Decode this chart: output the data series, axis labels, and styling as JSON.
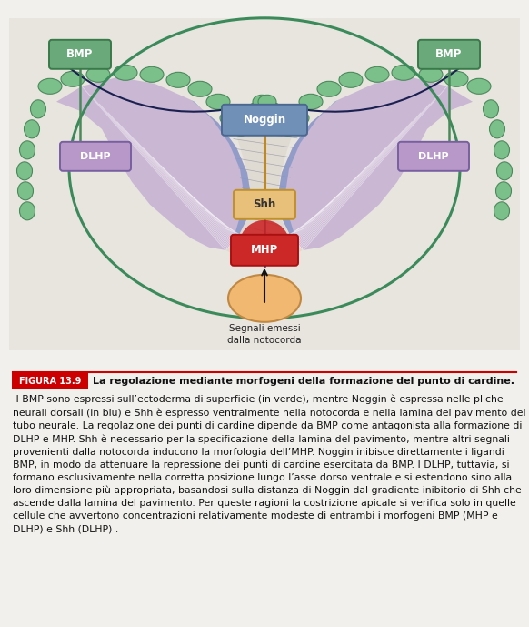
{
  "fig_bg": "#f2f0ec",
  "diagram_bg": "#e8e5df",
  "green_ecto": "#7bbf8a",
  "green_ecto_dark": "#4a8a5a",
  "green_circle": "#3a8a5a",
  "blue_neural": "#8898c8",
  "blue_neural2": "#a0aed8",
  "purple_neural": "#c0a8d0",
  "purple_neural2": "#d0bce0",
  "hatch_color": "#b0b0b8",
  "noggin_fc": "#7090b8",
  "noggin_ec": "#4a6890",
  "dlhp_fc": "#b898c8",
  "dlhp_ec": "#7860a0",
  "shh_fc": "#e8c07a",
  "shh_ec": "#c0902a",
  "mhp_fc": "#cc2828",
  "mhp_ec": "#aa1010",
  "notochord_fc": "#f0b870",
  "notochord_ec": "#c08840",
  "bmp_fc": "#6aaa7a",
  "bmp_ec": "#3a7a4a",
  "inhibit_color": "#c08820",
  "arrow_dark": "#1a2050",
  "red_line": "#cc0000",
  "caption_fig_label": "FIGURA 13.9",
  "caption_bold": "La regolazione mediante morfogeni della formazione del punto di cardine.",
  "caption_body": " I BMP sono espressi sull’ectoderma di superficie (in verde), mentre Noggin è espressa nelle pliche neurali dorsali (in blu) e Shh è espresso ventralmente nella notocorda e nella lamina del pavimento del tubo neurale. La regolazione dei punti di cardine dipende da BMP come antagonista alla formazione di DLHP e MHP. Shh è necessario per la specificazione della lamina del pavimento, mentre altri segnali provenienti dalla notocorda inducono la morfologia dell’MHP. Noggin inibisce direttamente i ligandi BMP, in modo da attenuare la repressione dei punti di cardine esercitata da BMP. I DLHP, tuttavia, si formano esclusivamente nella corretta posizione lungo l’asse dorso ventrale e si estendono sino alla loro dimensione più appropriata, basandosi sulla distanza di Noggin dal gradiente inibitorio di Shh che ascende dalla lamina del pavimento. Per queste ragioni la costrizione apicale si verifica solo in quelle cellule che avvertono concentrazioni relativamente modeste di entrambi i morfogeni BMP (MHP e DLHP) e Shh (DLHP) ."
}
